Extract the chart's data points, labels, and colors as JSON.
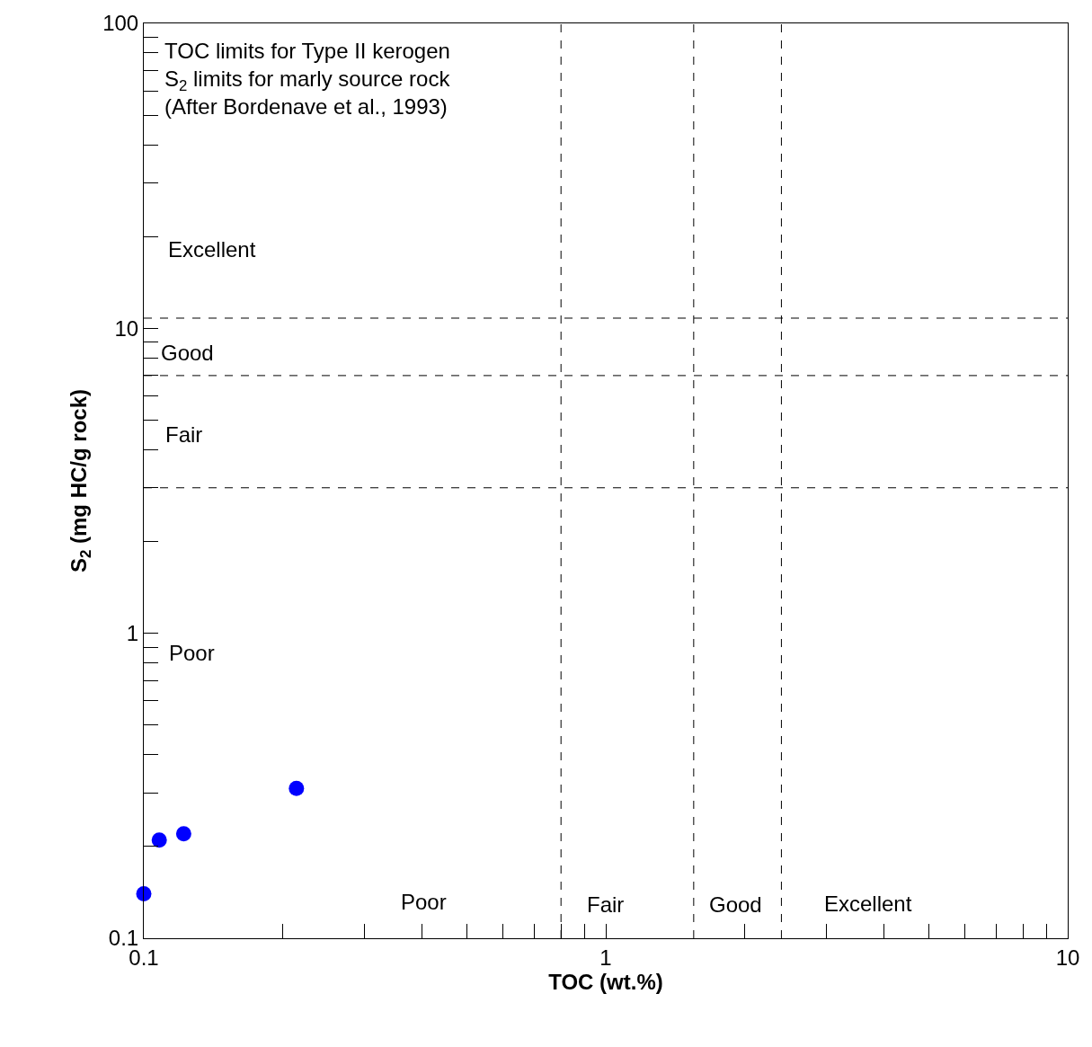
{
  "chart_data": {
    "type": "scatter",
    "xlabel": "TOC (wt.%)",
    "ylabel": "S$_{2}$ (mg HC/g rock)",
    "x": [
      0.1,
      0.108,
      0.122,
      0.214
    ],
    "series": [
      {
        "color": "#0000ff",
        "values": [
          0.14,
          0.21,
          0.22,
          0.31
        ]
      }
    ],
    "log": "xy",
    "marker": "circle",
    "xlim": [
      0.1,
      10
    ],
    "ylim": [
      0.1,
      100
    ],
    "xticks": [
      0.1,
      {
        "value": 0.2,
        "label": null
      },
      {
        "value": 0.3,
        "label": null
      },
      {
        "value": 0.4,
        "label": null
      },
      {
        "value": 0.5,
        "label": null
      },
      {
        "value": 0.6,
        "label": null
      },
      {
        "value": 0.7,
        "label": null
      },
      {
        "value": 0.8,
        "label": null
      },
      {
        "value": 0.9,
        "label": null
      },
      1,
      {
        "value": 2,
        "label": null
      },
      {
        "value": 3,
        "label": null
      },
      {
        "value": 4,
        "label": null
      },
      {
        "value": 5,
        "label": null
      },
      {
        "value": 6,
        "label": null
      },
      {
        "value": 7,
        "label": null
      },
      {
        "value": 8,
        "label": null
      },
      {
        "value": 9,
        "label": null
      },
      10
    ],
    "yticks": [
      0.1,
      {
        "value": 0.2,
        "label": null
      },
      {
        "value": 0.3,
        "label": null
      },
      {
        "value": 0.4,
        "label": null
      },
      {
        "value": 0.5,
        "label": null
      },
      {
        "value": 0.6,
        "label": null
      },
      {
        "value": 0.7,
        "label": null
      },
      {
        "value": 0.8,
        "label": null
      },
      {
        "value": 0.9,
        "label": null
      },
      1,
      {
        "value": 2,
        "label": null
      },
      {
        "value": 3,
        "label": null
      },
      {
        "value": 4,
        "label": null
      },
      {
        "value": 5,
        "label": null
      },
      {
        "value": 6,
        "label": null
      },
      {
        "value": 7,
        "label": null
      },
      {
        "value": 8,
        "label": null
      },
      {
        "value": 9,
        "label": null
      },
      10,
      {
        "value": 20,
        "label": null
      },
      {
        "value": 30,
        "label": null
      },
      {
        "value": 40,
        "label": null
      },
      {
        "value": 50,
        "label": null
      },
      {
        "value": 60,
        "label": null
      },
      {
        "value": 70,
        "label": null
      },
      {
        "value": 80,
        "label": null
      },
      {
        "value": 90,
        "label": null
      },
      100
    ],
    "ref_lines": [
      {
        "axis": "x",
        "value": 0.8,
        "color": "#000000",
        "line_style": "dashed"
      },
      {
        "axis": "x",
        "value": 1.55,
        "color": "#000000",
        "line_style": "dashed"
      },
      {
        "axis": "x",
        "value": 2.4,
        "color": "#000000",
        "line_style": "dashed"
      },
      {
        "axis": "y",
        "value": 10.8,
        "color": "#000000",
        "line_style": "dashed"
      },
      {
        "axis": "y",
        "value": 7,
        "color": "#000000",
        "line_style": "dashed"
      },
      {
        "axis": "y",
        "value": 3,
        "color": "#000000",
        "line_style": "dashed"
      }
    ],
    "annotations": [
      "TOC limits for Type II kerogen\nS$_{2}$ limits for marly source rock\n(After Bordenave et al., 1993)",
      "Excellent",
      "Good",
      "Fair",
      "Poor",
      "Poor",
      "Fair",
      "Good",
      "Excellent"
    ]
  }
}
